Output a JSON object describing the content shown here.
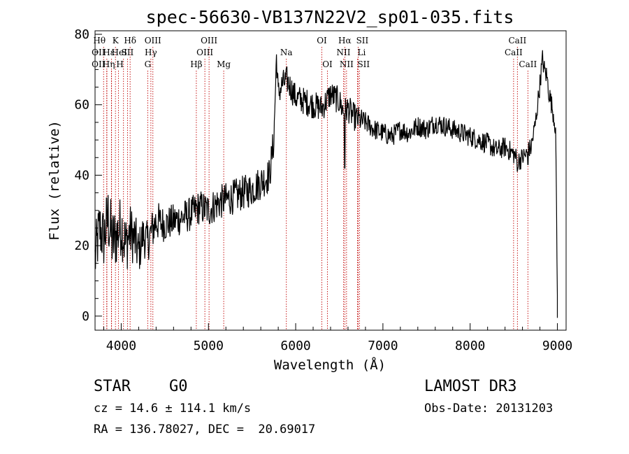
{
  "chart_data": {
    "type": "line",
    "title": "spec-56630-VB137N22V2_sp01-035.fits",
    "xlabel": "Wavelength (Å)",
    "ylabel": "Flux (relative)",
    "xlim": [
      3700,
      9100
    ],
    "ylim": [
      -4,
      81
    ],
    "xticks": [
      4000,
      5000,
      6000,
      7000,
      8000,
      9000
    ],
    "yticks": [
      0,
      20,
      40,
      60,
      80
    ],
    "series": [
      {
        "name": "flux",
        "x": [
          3700,
          3750,
          3800,
          3850,
          3900,
          3950,
          4000,
          4050,
          4100,
          4150,
          4200,
          4250,
          4300,
          4350,
          4400,
          4500,
          4600,
          4700,
          4800,
          4900,
          5000,
          5100,
          5200,
          5300,
          5400,
          5500,
          5600,
          5700,
          5750,
          5780,
          5800,
          5850,
          5900,
          6000,
          6100,
          6200,
          6300,
          6400,
          6500,
          6550,
          6600,
          6650,
          6700,
          6800,
          6900,
          7000,
          7100,
          7200,
          7300,
          7400,
          7500,
          7600,
          7700,
          7800,
          7900,
          8000,
          8100,
          8200,
          8300,
          8400,
          8500,
          8550,
          8600,
          8650,
          8700,
          8750,
          8800,
          8830,
          8850,
          8880,
          8900,
          8950,
          8970,
          8980,
          8990,
          9000
        ],
        "y": [
          16,
          25,
          22,
          28,
          21,
          23,
          26,
          20,
          24,
          22,
          18,
          23,
          21,
          24,
          27,
          26,
          27,
          28,
          29,
          31,
          30,
          32,
          33,
          34,
          35,
          36,
          38,
          40,
          50,
          74,
          63,
          66,
          67,
          62,
          61,
          60,
          59,
          63,
          61,
          58,
          59,
          57,
          56,
          55,
          53,
          52,
          51,
          53,
          52,
          54,
          53,
          55,
          54,
          53,
          52,
          51,
          50,
          49,
          47,
          48,
          46,
          44,
          45,
          46,
          48,
          55,
          66,
          73,
          70,
          68,
          64,
          58,
          55,
          53,
          30,
          5
        ],
        "noise": [
          9,
          9,
          9,
          10,
          10,
          9,
          9,
          9,
          8,
          8,
          7,
          6,
          6,
          6,
          6,
          5,
          5,
          5,
          5,
          5,
          5,
          5,
          5,
          5,
          5,
          5,
          5,
          5,
          5,
          4,
          4,
          4,
          4,
          4,
          4,
          4,
          4,
          4,
          4,
          4,
          4,
          4,
          4,
          3,
          3,
          3,
          3,
          3,
          3,
          3,
          3,
          3,
          3,
          3,
          3,
          3,
          3,
          3,
          3,
          3,
          3,
          3,
          3,
          3,
          3,
          3,
          3,
          3,
          3,
          3,
          3,
          3,
          3,
          3,
          3,
          3
        ]
      }
    ],
    "absorption_dips": [
      {
        "x": 6563,
        "y": 42
      },
      {
        "x": 8540,
        "y": 41
      },
      {
        "x": 8662,
        "y": 43
      }
    ],
    "lines": [
      {
        "x": 3798,
        "label": "Hθ",
        "row": 0,
        "dx": -6
      },
      {
        "x": 3835,
        "label": "OII",
        "row": 1,
        "dx": -12
      },
      {
        "x": 3835,
        "label": "OII",
        "row": 2,
        "dx": -12
      },
      {
        "x": 3889,
        "label": "Hε",
        "row": 1,
        "dx": -4
      },
      {
        "x": 3889,
        "label": "Hη",
        "row": 2,
        "dx": -4
      },
      {
        "x": 3934,
        "label": "K",
        "row": 0,
        "dx": 0
      },
      {
        "x": 3969,
        "label": "H",
        "row": 2,
        "dx": 2
      },
      {
        "x": 4026,
        "label": "HeI",
        "row": 1,
        "dx": -6
      },
      {
        "x": 4072,
        "label": "SII",
        "row": 1,
        "dx": 0
      },
      {
        "x": 4102,
        "label": "Hδ",
        "row": 0,
        "dx": 0
      },
      {
        "x": 4304,
        "label": "G",
        "row": 2,
        "dx": 0
      },
      {
        "x": 4340,
        "label": "Hγ",
        "row": 1,
        "dx": 0
      },
      {
        "x": 4363,
        "label": "OIII",
        "row": 0,
        "dx": 0
      },
      {
        "x": 4861,
        "label": "Hβ",
        "row": 2,
        "dx": 0
      },
      {
        "x": 4959,
        "label": "OIII",
        "row": 1,
        "dx": 0
      },
      {
        "x": 5007,
        "label": "OIII",
        "row": 0,
        "dx": 0
      },
      {
        "x": 5175,
        "label": "Mg",
        "row": 2,
        "dx": 0
      },
      {
        "x": 5893,
        "label": "Na",
        "row": 1,
        "dx": 0
      },
      {
        "x": 6300,
        "label": "OI",
        "row": 0,
        "dx": 0
      },
      {
        "x": 6364,
        "label": "OI",
        "row": 2,
        "dx": 0
      },
      {
        "x": 6548,
        "label": "NII",
        "row": 1,
        "dx": 0
      },
      {
        "x": 6563,
        "label": "Hα",
        "row": 0,
        "dx": 0
      },
      {
        "x": 6583,
        "label": "NII",
        "row": 2,
        "dx": 0
      },
      {
        "x": 6708,
        "label": "Li",
        "row": 1,
        "dx": 6
      },
      {
        "x": 6716,
        "label": "SII",
        "row": 0,
        "dx": 6
      },
      {
        "x": 6731,
        "label": "SII",
        "row": 2,
        "dx": 6
      },
      {
        "x": 8498,
        "label": "CaII",
        "row": 1,
        "dx": 0
      },
      {
        "x": 8542,
        "label": "CaII",
        "row": 0,
        "dx": 0
      },
      {
        "x": 8662,
        "label": "CaII",
        "row": 2,
        "dx": 0
      }
    ]
  },
  "info": {
    "class": "STAR",
    "subclass": "G0",
    "survey": "LAMOST DR3",
    "cz": "cz = 14.6 ± 114.1 km/s",
    "obs_date": "Obs-Date: 20131203",
    "coords": "RA = 136.78027, DEC =  20.69017"
  }
}
